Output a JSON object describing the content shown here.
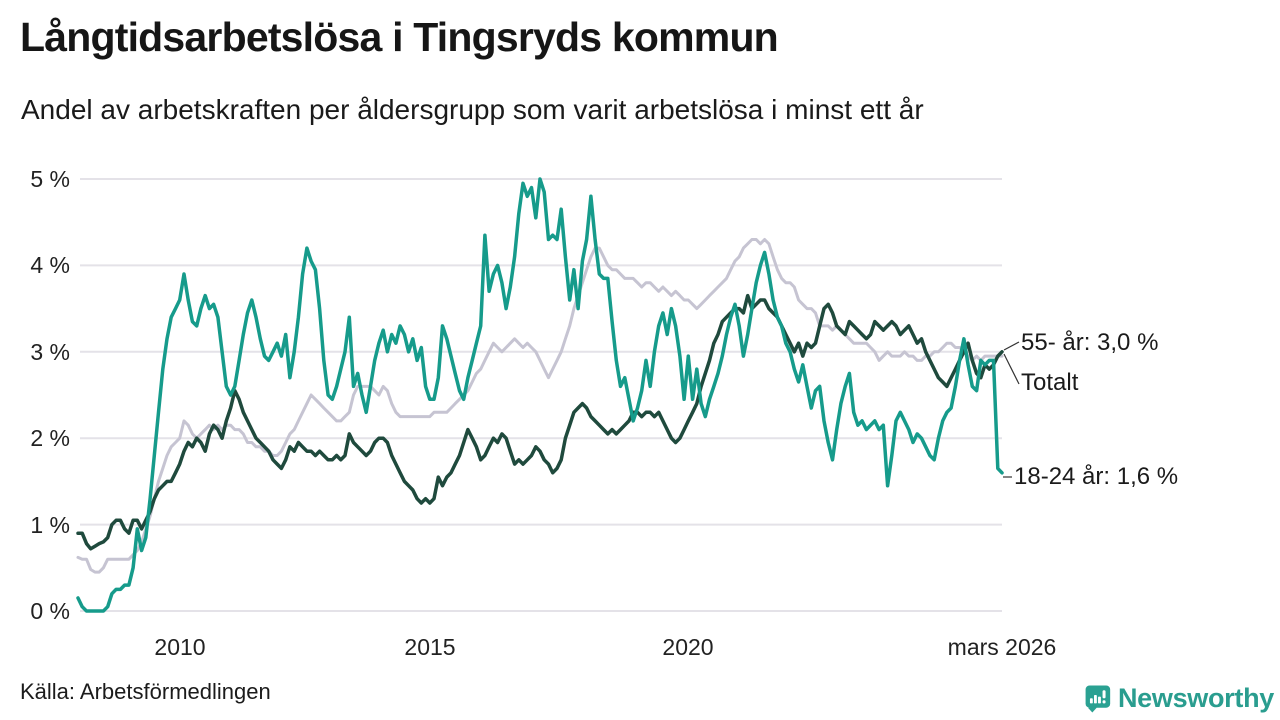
{
  "header": {
    "title": "Långtidsarbetslösa i Tingsryds kommun",
    "subtitle": "Andel av arbetskraften per åldersgrupp som varit arbetslösa i minst ett år"
  },
  "footer": {
    "source": "Källa: Arbetsförmedlingen",
    "brand": "Newsworthy",
    "brand_color": "#2a9d8f"
  },
  "chart_data": {
    "type": "line",
    "title": "Långtidsarbetslösa i Tingsryds kommun",
    "subtitle": "Andel av arbetskraften per åldersgrupp som varit arbetslösa i minst ett år",
    "frequency": "monthly",
    "x_start": "2008-01",
    "x_end": "2026-03",
    "ylim": [
      0,
      5
    ],
    "grid": true,
    "grid_color": "#e4e2e8",
    "yticks_top_down": [
      "5 %",
      "4 %",
      "3 %",
      "2 %",
      "1 %",
      "0 %"
    ],
    "xticks": [
      {
        "label": "2010",
        "month_index": 24
      },
      {
        "label": "2015",
        "month_index": 84
      },
      {
        "label": "2020",
        "month_index": 144
      },
      {
        "label": "mars 2026",
        "month_index": 218
      }
    ],
    "legend_position": "right-end-labels",
    "series": [
      {
        "name": "Totalt",
        "end_label": "Totalt",
        "end_value": 2.95,
        "color": "#c6c4d2",
        "values": [
          0.62,
          0.6,
          0.6,
          0.48,
          0.45,
          0.45,
          0.5,
          0.6,
          0.6,
          0.6,
          0.6,
          0.6,
          0.6,
          0.65,
          0.7,
          0.8,
          0.95,
          1.1,
          1.3,
          1.5,
          1.65,
          1.8,
          1.9,
          1.95,
          2.0,
          2.2,
          2.15,
          2.05,
          2.0,
          2.05,
          2.1,
          2.15,
          2.1,
          2.15,
          2.1,
          2.15,
          2.15,
          2.1,
          2.1,
          2.05,
          1.95,
          1.95,
          1.9,
          1.9,
          1.85,
          1.85,
          1.8,
          1.8,
          1.85,
          1.95,
          2.05,
          2.1,
          2.2,
          2.3,
          2.4,
          2.5,
          2.45,
          2.4,
          2.35,
          2.3,
          2.25,
          2.2,
          2.2,
          2.25,
          2.3,
          2.5,
          2.6,
          2.6,
          2.6,
          2.6,
          2.55,
          2.5,
          2.6,
          2.55,
          2.4,
          2.3,
          2.25,
          2.25,
          2.25,
          2.25,
          2.25,
          2.25,
          2.25,
          2.25,
          2.3,
          2.3,
          2.3,
          2.3,
          2.35,
          2.4,
          2.45,
          2.5,
          2.55,
          2.65,
          2.75,
          2.8,
          2.9,
          3.0,
          3.1,
          3.05,
          3.0,
          3.05,
          3.1,
          3.15,
          3.1,
          3.05,
          3.1,
          3.05,
          3.0,
          2.9,
          2.8,
          2.7,
          2.8,
          2.9,
          3.0,
          3.15,
          3.3,
          3.5,
          3.65,
          3.8,
          3.95,
          4.1,
          4.2,
          4.2,
          4.1,
          4.0,
          3.95,
          3.95,
          3.9,
          3.85,
          3.85,
          3.85,
          3.8,
          3.75,
          3.8,
          3.8,
          3.75,
          3.7,
          3.75,
          3.7,
          3.65,
          3.7,
          3.65,
          3.6,
          3.6,
          3.55,
          3.5,
          3.55,
          3.6,
          3.65,
          3.7,
          3.75,
          3.8,
          3.85,
          3.95,
          4.05,
          4.1,
          4.2,
          4.25,
          4.3,
          4.3,
          4.25,
          4.3,
          4.25,
          4.1,
          3.95,
          3.85,
          3.8,
          3.8,
          3.75,
          3.6,
          3.55,
          3.5,
          3.5,
          3.45,
          3.3,
          3.3,
          3.3,
          3.25,
          3.3,
          3.25,
          3.2,
          3.15,
          3.1,
          3.1,
          3.1,
          3.1,
          3.05,
          3.0,
          2.9,
          2.95,
          3.0,
          2.95,
          2.95,
          2.95,
          3.0,
          2.95,
          2.95,
          2.9,
          2.9,
          2.95,
          2.95,
          3.0,
          3.0,
          3.05,
          3.1,
          3.1,
          3.05,
          3.05,
          3.0,
          2.95,
          2.9,
          2.95,
          2.9,
          2.95,
          2.95,
          2.95,
          2.95,
          2.95
        ]
      },
      {
        "name": "55- år",
        "end_label": "55- år: 3,0 %",
        "end_value": 3.0,
        "color": "#1f4a3d",
        "values": [
          0.9,
          0.9,
          0.78,
          0.72,
          0.75,
          0.78,
          0.8,
          0.85,
          1.0,
          1.05,
          1.05,
          0.95,
          0.9,
          1.05,
          1.05,
          0.95,
          1.05,
          1.15,
          1.3,
          1.4,
          1.45,
          1.5,
          1.5,
          1.6,
          1.7,
          1.85,
          1.95,
          1.9,
          2.0,
          1.95,
          1.85,
          2.05,
          2.15,
          2.1,
          2.0,
          2.2,
          2.35,
          2.55,
          2.45,
          2.3,
          2.2,
          2.1,
          2.0,
          1.95,
          1.9,
          1.85,
          1.75,
          1.7,
          1.65,
          1.75,
          1.9,
          1.85,
          1.95,
          1.9,
          1.85,
          1.85,
          1.8,
          1.85,
          1.8,
          1.75,
          1.75,
          1.8,
          1.75,
          1.8,
          2.05,
          1.95,
          1.9,
          1.85,
          1.8,
          1.85,
          1.95,
          2.0,
          2.0,
          1.95,
          1.8,
          1.7,
          1.6,
          1.5,
          1.45,
          1.4,
          1.3,
          1.25,
          1.3,
          1.25,
          1.3,
          1.55,
          1.45,
          1.55,
          1.6,
          1.7,
          1.8,
          1.95,
          2.1,
          2.0,
          1.9,
          1.75,
          1.8,
          1.9,
          2.0,
          1.95,
          2.05,
          2.0,
          1.85,
          1.7,
          1.75,
          1.7,
          1.75,
          1.8,
          1.9,
          1.85,
          1.75,
          1.7,
          1.6,
          1.65,
          1.75,
          2.0,
          2.15,
          2.3,
          2.35,
          2.4,
          2.35,
          2.25,
          2.2,
          2.15,
          2.1,
          2.05,
          2.1,
          2.05,
          2.1,
          2.15,
          2.2,
          2.3,
          2.3,
          2.25,
          2.3,
          2.3,
          2.25,
          2.3,
          2.2,
          2.1,
          2.0,
          1.95,
          2.0,
          2.1,
          2.2,
          2.3,
          2.4,
          2.6,
          2.75,
          2.9,
          3.1,
          3.2,
          3.35,
          3.4,
          3.45,
          3.5,
          3.5,
          3.45,
          3.65,
          3.5,
          3.55,
          3.6,
          3.6,
          3.5,
          3.45,
          3.4,
          3.3,
          3.2,
          3.1,
          3.0,
          3.1,
          2.95,
          3.1,
          3.05,
          3.1,
          3.3,
          3.5,
          3.55,
          3.45,
          3.3,
          3.25,
          3.2,
          3.35,
          3.3,
          3.25,
          3.2,
          3.15,
          3.2,
          3.35,
          3.3,
          3.25,
          3.3,
          3.35,
          3.3,
          3.2,
          3.25,
          3.3,
          3.2,
          3.1,
          3.15,
          3.0,
          2.9,
          2.8,
          2.7,
          2.65,
          2.6,
          2.7,
          2.8,
          2.9,
          3.0,
          3.1,
          2.9,
          2.75,
          2.7,
          2.85,
          2.8,
          2.85,
          2.95,
          3.0
        ]
      },
      {
        "name": "18-24 år",
        "end_label": "18-24 år: 1,6 %",
        "end_value": 1.6,
        "color": "#169b8b",
        "values": [
          0.15,
          0.05,
          0.0,
          0.0,
          0.0,
          0.0,
          0.0,
          0.05,
          0.2,
          0.25,
          0.25,
          0.3,
          0.3,
          0.5,
          0.95,
          0.7,
          0.85,
          1.3,
          1.8,
          2.3,
          2.8,
          3.15,
          3.4,
          3.5,
          3.6,
          3.9,
          3.6,
          3.35,
          3.3,
          3.5,
          3.65,
          3.5,
          3.55,
          3.4,
          3.0,
          2.6,
          2.5,
          2.6,
          2.9,
          3.2,
          3.45,
          3.6,
          3.4,
          3.15,
          2.95,
          2.9,
          3.0,
          3.1,
          2.95,
          3.2,
          2.7,
          3.0,
          3.4,
          3.9,
          4.2,
          4.05,
          3.95,
          3.5,
          2.9,
          2.5,
          2.45,
          2.6,
          2.8,
          3.0,
          3.4,
          2.6,
          2.75,
          2.5,
          2.3,
          2.6,
          2.9,
          3.1,
          3.25,
          3.0,
          3.2,
          3.1,
          3.3,
          3.2,
          3.0,
          3.15,
          2.9,
          3.05,
          2.6,
          2.45,
          2.45,
          2.7,
          3.3,
          3.15,
          2.95,
          2.75,
          2.55,
          2.45,
          2.7,
          2.9,
          3.1,
          3.3,
          4.35,
          3.7,
          3.9,
          4.0,
          3.8,
          3.5,
          3.75,
          4.1,
          4.6,
          4.95,
          4.8,
          4.9,
          4.55,
          5.0,
          4.85,
          4.3,
          4.35,
          4.3,
          4.65,
          4.1,
          3.6,
          3.95,
          3.5,
          4.05,
          4.3,
          4.8,
          4.3,
          3.9,
          3.85,
          3.85,
          3.35,
          2.9,
          2.6,
          2.7,
          2.45,
          2.2,
          2.35,
          2.55,
          2.9,
          2.6,
          3.0,
          3.3,
          3.45,
          3.2,
          3.5,
          3.3,
          2.95,
          2.45,
          2.95,
          2.45,
          2.8,
          2.4,
          2.25,
          2.45,
          2.6,
          2.75,
          2.95,
          3.2,
          3.4,
          3.55,
          3.3,
          2.95,
          3.2,
          3.5,
          3.8,
          4.0,
          4.15,
          3.9,
          3.6,
          3.4,
          3.3,
          3.1,
          3.0,
          2.8,
          2.65,
          2.85,
          2.6,
          2.35,
          2.55,
          2.6,
          2.2,
          1.95,
          1.75,
          2.1,
          2.4,
          2.6,
          2.75,
          2.3,
          2.15,
          2.2,
          2.1,
          2.15,
          2.2,
          2.1,
          2.15,
          1.45,
          1.8,
          2.2,
          2.3,
          2.2,
          2.1,
          1.95,
          2.05,
          2.0,
          1.9,
          1.8,
          1.75,
          2.0,
          2.2,
          2.3,
          2.35,
          2.6,
          2.9,
          3.15,
          2.85,
          2.6,
          2.55,
          2.9,
          2.85,
          2.9,
          2.9,
          1.65,
          1.6
        ]
      }
    ]
  }
}
